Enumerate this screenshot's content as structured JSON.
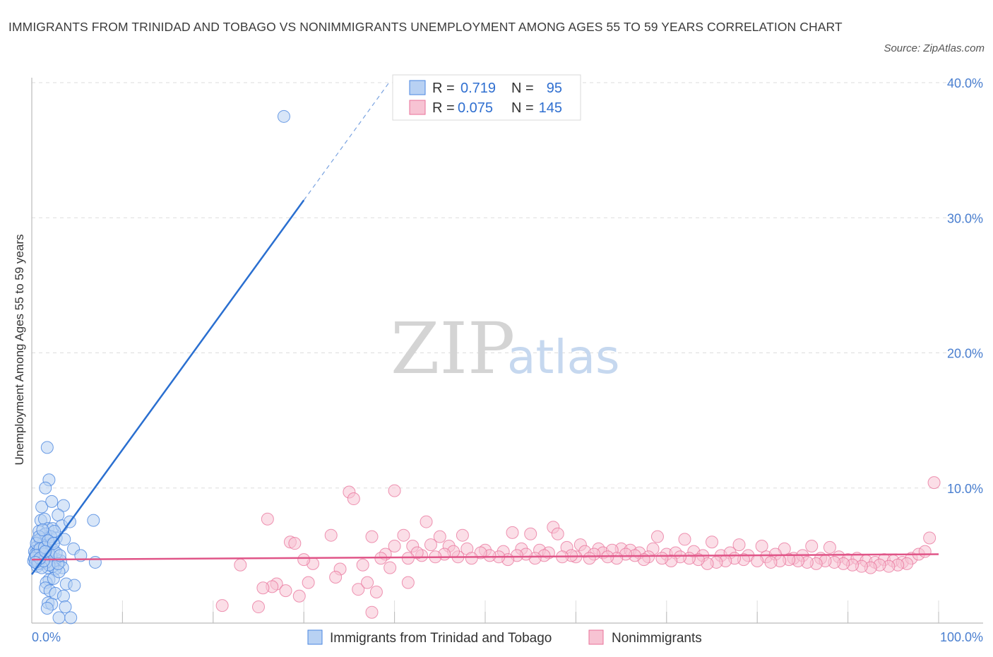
{
  "title": "IMMIGRANTS FROM TRINIDAD AND TOBAGO VS NONIMMIGRANTS UNEMPLOYMENT AMONG AGES 55 TO 59 YEARS CORRELATION CHART",
  "source": "Source: ZipAtlas.com",
  "watermark": {
    "zip": "ZIP",
    "atlas": "atlas"
  },
  "colors": {
    "blue": "#4a86e0",
    "blue_fill": "#b8d1f3",
    "pink": "#e8729a",
    "pink_fill": "#f7c3d3",
    "axis_label": "#4a7fd0",
    "grid": "#dddddd"
  },
  "legend": {
    "series1": {
      "r_label": "R = ",
      "r_value": "0.719",
      "n_label": "N = ",
      "n_value": "95"
    },
    "series2": {
      "r_label": "R = ",
      "r_value": "0.075",
      "n_label": "N = ",
      "n_value": "145"
    }
  },
  "bottom_legend": {
    "series1": "Immigrants from Trinidad and Tobago",
    "series2": "Nonimmigrants"
  },
  "chart_data": {
    "type": "scatter",
    "title": "IMMIGRANTS FROM TRINIDAD AND TOBAGO VS NONIMMIGRANTS UNEMPLOYMENT AMONG AGES 55 TO 59 YEARS CORRELATION CHART",
    "xlabel": "",
    "ylabel": "Unemployment Among Ages 55 to 59 years",
    "xlim": [
      0,
      100
    ],
    "ylim": [
      0,
      40
    ],
    "x_tick_labels": [
      "0.0%",
      "100.0%"
    ],
    "y_ticks": [
      10,
      20,
      30,
      40
    ],
    "y_tick_labels": [
      "10.0%",
      "20.0%",
      "30.0%",
      "40.0%"
    ],
    "grid": true,
    "legend_position": "top-center",
    "series": [
      {
        "name": "Immigrants from Trinidad and Tobago",
        "color": "#4a86e0",
        "r": 0.719,
        "n": 95,
        "trend": {
          "x": [
            0.0,
            30.0
          ],
          "y": [
            3.6,
            31.3
          ]
        },
        "trend_dashed": {
          "x": [
            30.0,
            39.5
          ],
          "y": [
            31.3,
            40.1
          ]
        },
        "points": [
          [
            27.8,
            37.5
          ],
          [
            1.7,
            13.0
          ],
          [
            1.9,
            10.6
          ],
          [
            1.5,
            10.0
          ],
          [
            3.5,
            8.7
          ],
          [
            1.1,
            8.6
          ],
          [
            2.2,
            9.0
          ],
          [
            2.9,
            8.0
          ],
          [
            6.8,
            7.6
          ],
          [
            1.0,
            7.6
          ],
          [
            1.4,
            7.7
          ],
          [
            1.8,
            7.0
          ],
          [
            2.3,
            7.0
          ],
          [
            3.3,
            7.2
          ],
          [
            4.2,
            7.5
          ],
          [
            1.2,
            6.5
          ],
          [
            1.6,
            6.3
          ],
          [
            0.8,
            6.8
          ],
          [
            1.3,
            6.0
          ],
          [
            2.7,
            6.3
          ],
          [
            3.6,
            6.2
          ],
          [
            0.6,
            6.1
          ],
          [
            1.1,
            5.8
          ],
          [
            2.0,
            5.7
          ],
          [
            1.6,
            5.5
          ],
          [
            0.5,
            5.6
          ],
          [
            0.3,
            5.3
          ],
          [
            1.9,
            5.2
          ],
          [
            2.4,
            5.4
          ],
          [
            4.6,
            5.5
          ],
          [
            0.4,
            4.9
          ],
          [
            0.8,
            5.0
          ],
          [
            1.4,
            4.8
          ],
          [
            2.2,
            4.9
          ],
          [
            2.8,
            4.7
          ],
          [
            3.2,
            4.6
          ],
          [
            0.2,
            4.6
          ],
          [
            1.0,
            4.4
          ],
          [
            2.5,
            4.5
          ],
          [
            3.4,
            4.1
          ],
          [
            5.4,
            5.0
          ],
          [
            7.0,
            4.5
          ],
          [
            0.6,
            4.2
          ],
          [
            1.8,
            4.1
          ],
          [
            2.6,
            4.0
          ],
          [
            0.9,
            6.2
          ],
          [
            1.5,
            6.6
          ],
          [
            2.1,
            6.4
          ],
          [
            1.2,
            5.2
          ],
          [
            0.7,
            5.4
          ],
          [
            1.7,
            4.6
          ],
          [
            2.3,
            4.2
          ],
          [
            0.4,
            5.1
          ],
          [
            1.1,
            4.9
          ],
          [
            1.9,
            3.2
          ],
          [
            1.6,
            3.0
          ],
          [
            2.4,
            3.3
          ],
          [
            3.0,
            3.8
          ],
          [
            3.8,
            2.9
          ],
          [
            4.7,
            2.8
          ],
          [
            1.5,
            2.6
          ],
          [
            2.0,
            2.4
          ],
          [
            2.6,
            2.2
          ],
          [
            3.5,
            2.0
          ],
          [
            1.8,
            1.5
          ],
          [
            2.2,
            1.4
          ],
          [
            1.7,
            1.1
          ],
          [
            3.7,
            1.2
          ],
          [
            3.0,
            0.4
          ],
          [
            4.3,
            0.4
          ],
          [
            0.5,
            5.9
          ],
          [
            0.9,
            5.5
          ],
          [
            1.3,
            5.1
          ],
          [
            0.3,
            4.8
          ],
          [
            1.0,
            4.7
          ],
          [
            1.6,
            4.5
          ],
          [
            2.1,
            5.0
          ],
          [
            2.7,
            5.2
          ],
          [
            0.6,
            4.6
          ],
          [
            1.4,
            5.6
          ],
          [
            0.8,
            6.4
          ],
          [
            1.2,
            6.9
          ],
          [
            2.5,
            6.8
          ],
          [
            1.9,
            4.3
          ],
          [
            0.7,
            4.4
          ],
          [
            1.1,
            4.1
          ],
          [
            2.9,
            4.4
          ],
          [
            3.1,
            5.0
          ],
          [
            0.5,
            5.0
          ],
          [
            1.8,
            6.1
          ],
          [
            2.4,
            5.9
          ],
          [
            1.3,
            4.6
          ],
          [
            0.9,
            4.8
          ],
          [
            1.5,
            5.3
          ],
          [
            0.4,
            4.5
          ]
        ]
      },
      {
        "name": "Nonimmigrants",
        "color": "#e8729a",
        "r": 0.075,
        "n": 145,
        "trend": {
          "x": [
            0.0,
            100.0
          ],
          "y": [
            4.7,
            5.1
          ]
        },
        "points": [
          [
            35.0,
            9.7
          ],
          [
            40.0,
            9.8
          ],
          [
            35.5,
            9.2
          ],
          [
            26.0,
            7.7
          ],
          [
            43.5,
            7.5
          ],
          [
            33.0,
            6.5
          ],
          [
            37.5,
            6.4
          ],
          [
            41.0,
            6.5
          ],
          [
            45.0,
            6.4
          ],
          [
            47.5,
            6.5
          ],
          [
            53.0,
            6.7
          ],
          [
            55.0,
            6.6
          ],
          [
            57.5,
            7.1
          ],
          [
            58.0,
            6.6
          ],
          [
            62.5,
            5.5
          ],
          [
            60.5,
            5.8
          ],
          [
            65.0,
            5.5
          ],
          [
            69.0,
            6.4
          ],
          [
            72.0,
            6.2
          ],
          [
            75.0,
            6.0
          ],
          [
            78.0,
            5.8
          ],
          [
            80.5,
            5.7
          ],
          [
            83.0,
            5.5
          ],
          [
            86.0,
            5.7
          ],
          [
            88.0,
            5.6
          ],
          [
            28.5,
            6.0
          ],
          [
            40.0,
            5.7
          ],
          [
            42.0,
            5.7
          ],
          [
            44.0,
            5.8
          ],
          [
            46.0,
            5.7
          ],
          [
            48.0,
            5.5
          ],
          [
            50.0,
            5.4
          ],
          [
            52.0,
            5.3
          ],
          [
            54.0,
            5.5
          ],
          [
            56.0,
            5.4
          ],
          [
            59.0,
            5.6
          ],
          [
            61.0,
            5.3
          ],
          [
            63.0,
            5.2
          ],
          [
            64.0,
            5.4
          ],
          [
            66.0,
            5.4
          ],
          [
            67.0,
            5.2
          ],
          [
            68.5,
            5.5
          ],
          [
            70.0,
            5.1
          ],
          [
            71.0,
            5.2
          ],
          [
            73.0,
            5.3
          ],
          [
            74.0,
            5.0
          ],
          [
            76.0,
            5.0
          ],
          [
            77.0,
            5.2
          ],
          [
            79.0,
            5.0
          ],
          [
            81.0,
            4.9
          ],
          [
            82.0,
            5.1
          ],
          [
            84.0,
            4.8
          ],
          [
            85.0,
            5.0
          ],
          [
            87.0,
            4.8
          ],
          [
            89.0,
            4.9
          ],
          [
            90.0,
            4.7
          ],
          [
            91.0,
            4.8
          ],
          [
            92.0,
            4.6
          ],
          [
            93.0,
            4.5
          ],
          [
            94.0,
            4.7
          ],
          [
            95.0,
            4.6
          ],
          [
            96.0,
            4.5
          ],
          [
            97.0,
            4.8
          ],
          [
            97.8,
            5.1
          ],
          [
            98.5,
            5.3
          ],
          [
            99.0,
            6.3
          ],
          [
            99.5,
            10.4
          ],
          [
            96.5,
            4.4
          ],
          [
            95.5,
            4.3
          ],
          [
            94.5,
            4.2
          ],
          [
            93.5,
            4.3
          ],
          [
            92.5,
            4.1
          ],
          [
            91.5,
            4.2
          ],
          [
            90.5,
            4.3
          ],
          [
            89.5,
            4.4
          ],
          [
            88.5,
            4.5
          ],
          [
            87.5,
            4.6
          ],
          [
            86.5,
            4.4
          ],
          [
            85.5,
            4.5
          ],
          [
            84.5,
            4.6
          ],
          [
            83.5,
            4.7
          ],
          [
            82.5,
            4.6
          ],
          [
            81.5,
            4.5
          ],
          [
            80.0,
            4.6
          ],
          [
            78.5,
            4.7
          ],
          [
            77.5,
            4.8
          ],
          [
            76.5,
            4.6
          ],
          [
            75.5,
            4.5
          ],
          [
            74.5,
            4.4
          ],
          [
            73.5,
            4.7
          ],
          [
            72.5,
            4.8
          ],
          [
            71.5,
            4.9
          ],
          [
            70.5,
            4.6
          ],
          [
            69.5,
            4.8
          ],
          [
            68.0,
            4.9
          ],
          [
            67.5,
            4.7
          ],
          [
            66.5,
            5.0
          ],
          [
            65.5,
            5.1
          ],
          [
            64.5,
            4.8
          ],
          [
            63.5,
            4.9
          ],
          [
            62.0,
            5.1
          ],
          [
            61.5,
            4.8
          ],
          [
            60.0,
            4.9
          ],
          [
            59.5,
            5.0
          ],
          [
            58.5,
            4.9
          ],
          [
            57.0,
            5.2
          ],
          [
            56.5,
            5.0
          ],
          [
            55.5,
            4.8
          ],
          [
            54.5,
            5.1
          ],
          [
            53.5,
            5.0
          ],
          [
            52.5,
            4.7
          ],
          [
            51.5,
            4.9
          ],
          [
            50.5,
            5.0
          ],
          [
            49.5,
            5.2
          ],
          [
            48.5,
            4.8
          ],
          [
            47.0,
            4.9
          ],
          [
            46.5,
            5.3
          ],
          [
            45.5,
            5.1
          ],
          [
            44.5,
            4.9
          ],
          [
            43.0,
            5.0
          ],
          [
            42.5,
            5.2
          ],
          [
            41.5,
            4.8
          ],
          [
            39.0,
            5.1
          ],
          [
            38.5,
            4.8
          ],
          [
            36.5,
            4.3
          ],
          [
            34.0,
            4.0
          ],
          [
            31.0,
            4.4
          ],
          [
            30.0,
            4.7
          ],
          [
            29.0,
            5.9
          ],
          [
            27.0,
            2.9
          ],
          [
            26.5,
            2.7
          ],
          [
            25.5,
            2.6
          ],
          [
            28.0,
            2.4
          ],
          [
            29.5,
            2.0
          ],
          [
            30.5,
            3.0
          ],
          [
            33.5,
            3.4
          ],
          [
            36.0,
            2.5
          ],
          [
            38.0,
            2.3
          ],
          [
            39.5,
            4.1
          ],
          [
            41.5,
            3.0
          ],
          [
            37.0,
            3.0
          ],
          [
            23.0,
            4.3
          ],
          [
            21.0,
            1.3
          ],
          [
            25.0,
            1.2
          ],
          [
            37.5,
            0.8
          ]
        ]
      }
    ]
  }
}
